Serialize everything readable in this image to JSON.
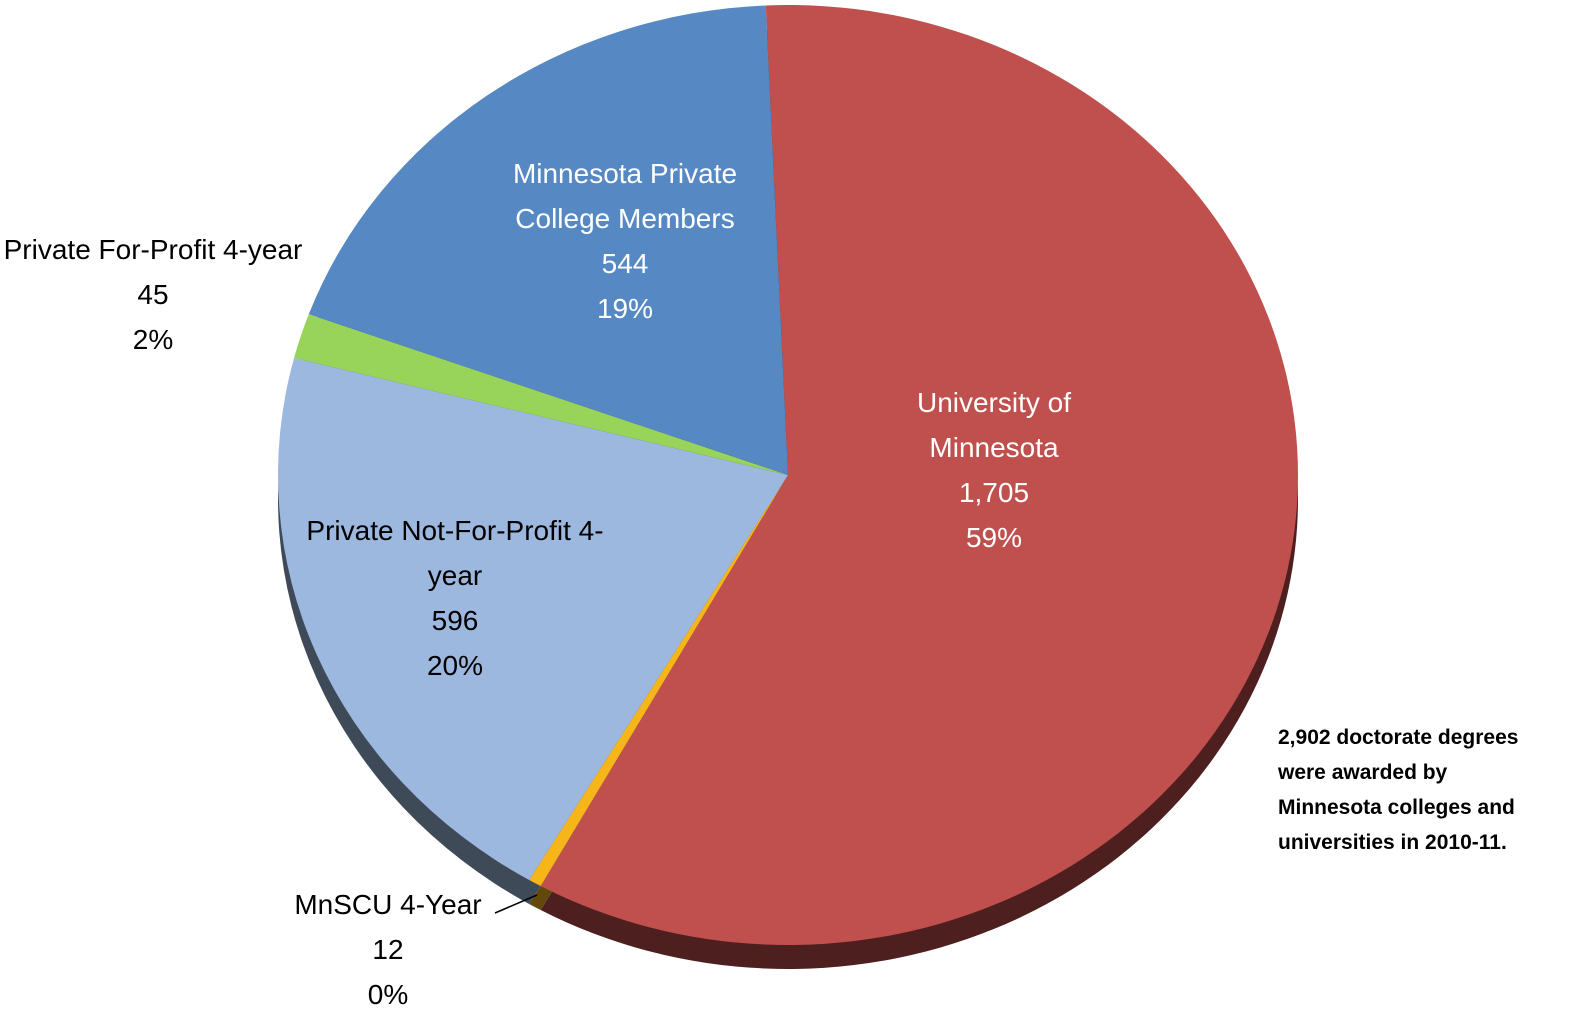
{
  "chart_data": {
    "type": "pie",
    "categories": [
      "University of Minnesota",
      "MnSCU 4-Year",
      "Private Not-For-Profit 4-year",
      "Private For-Profit 4-year",
      "Minnesota Private College Members"
    ],
    "values": [
      1705,
      12,
      596,
      45,
      544
    ],
    "value_labels": [
      "1,705",
      "12",
      "596",
      "45",
      "544"
    ],
    "percent_labels": [
      "59%",
      "0%",
      "20%",
      "2%",
      "19%"
    ],
    "colors": [
      "#c0504d",
      "#f6b619",
      "#9db8de",
      "#98d45a",
      "#5688c3"
    ],
    "annotation": [
      "2,902 doctorate degrees",
      "were awarded by",
      "Minnesota colleges and",
      "universities in 2010-11."
    ]
  }
}
